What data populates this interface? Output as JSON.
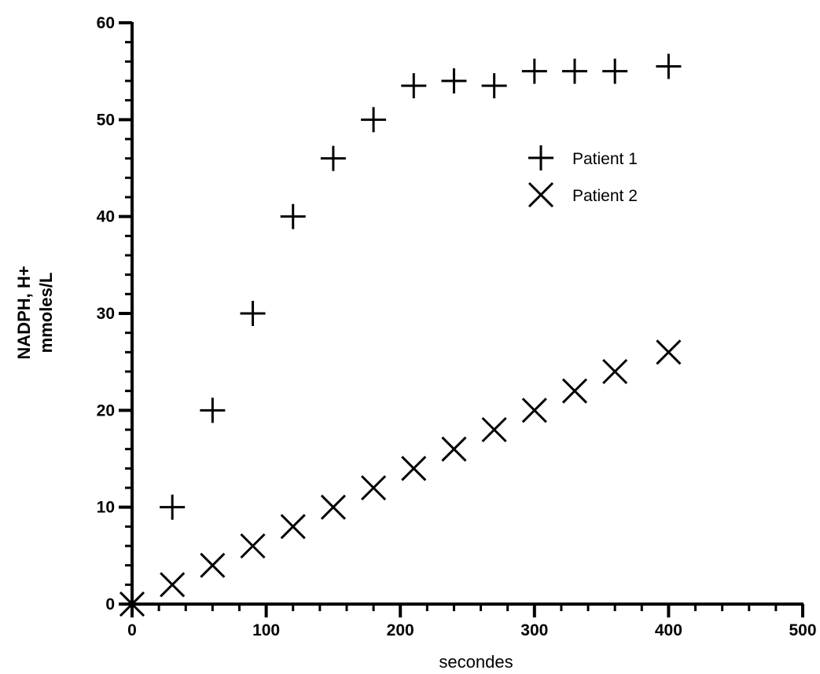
{
  "chart_data": {
    "type": "scatter",
    "xlabel": "secondes",
    "ylabel_lines": [
      "NADPH, H+",
      "mmoles/L"
    ],
    "xlim": [
      0,
      500
    ],
    "ylim": [
      0,
      60
    ],
    "x_ticks": [
      0,
      100,
      200,
      300,
      400,
      500
    ],
    "y_ticks": [
      0,
      10,
      20,
      30,
      40,
      50,
      60
    ],
    "x_minor_step": 20,
    "y_minor_step": 2,
    "grid": false,
    "legend_position": "upper-right (inside plot)",
    "series": [
      {
        "name": "Patient 1",
        "marker": "plus",
        "x": [
          0,
          30,
          60,
          90,
          120,
          150,
          180,
          210,
          240,
          270,
          300,
          330,
          360,
          400
        ],
        "y": [
          0,
          10,
          20,
          30,
          40,
          46,
          50,
          53.5,
          54,
          53.5,
          55,
          55,
          55,
          55.5
        ]
      },
      {
        "name": "Patient 2",
        "marker": "cross",
        "x": [
          0,
          30,
          60,
          90,
          120,
          150,
          180,
          210,
          240,
          270,
          300,
          330,
          360,
          400
        ],
        "y": [
          0,
          2,
          4,
          6,
          8,
          10,
          12,
          14,
          16,
          18,
          20,
          22,
          24,
          26
        ]
      }
    ]
  }
}
